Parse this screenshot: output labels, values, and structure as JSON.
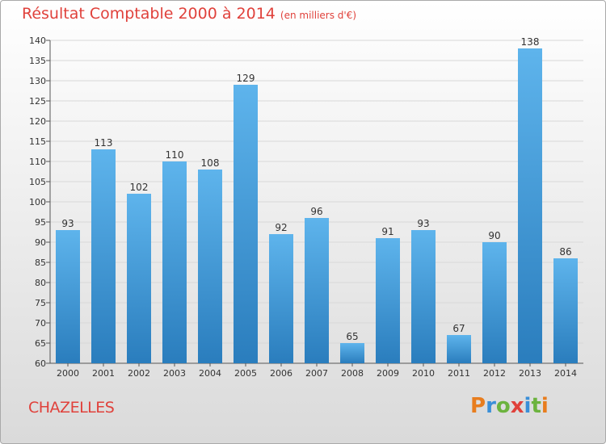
{
  "title": "Résultat Comptable 2000 à 2014",
  "subtitle": "(en milliers d'€)",
  "commune": "CHAZELLES",
  "logo": "Proxiti",
  "colors": {
    "title": "#e0413b",
    "bar_top": "#5eb4ec",
    "bar_bottom": "#2a7dbd",
    "grid": "#d8d8d8"
  },
  "chart_data": {
    "type": "bar",
    "title": "Résultat Comptable 2000 à 2014",
    "subtitle": "(en milliers d'€)",
    "xlabel": "",
    "ylabel": "",
    "ylim": [
      60,
      140
    ],
    "yticks": [
      60,
      65,
      70,
      75,
      80,
      85,
      90,
      95,
      100,
      105,
      110,
      115,
      120,
      125,
      130,
      135,
      140
    ],
    "grid": true,
    "categories": [
      "2000",
      "2001",
      "2002",
      "2003",
      "2004",
      "2005",
      "2006",
      "2007",
      "2008",
      "2009",
      "2010",
      "2011",
      "2012",
      "2013",
      "2014"
    ],
    "values": [
      93,
      113,
      102,
      110,
      108,
      129,
      92,
      96,
      65,
      91,
      93,
      67,
      90,
      138,
      86
    ]
  }
}
